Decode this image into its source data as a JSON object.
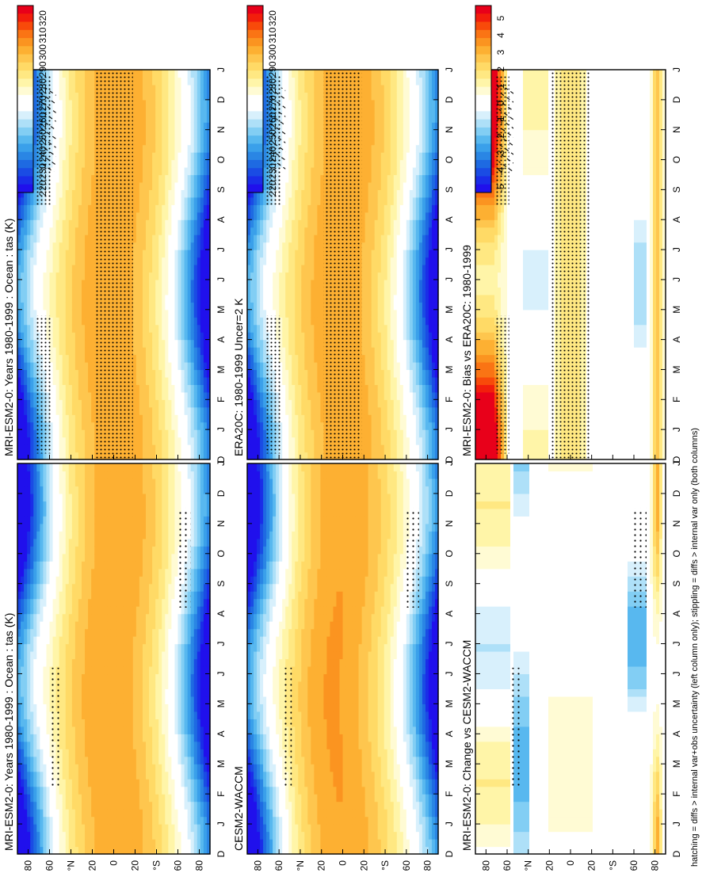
{
  "chart_data": [
    {
      "type": "heatmap",
      "title": "MRI-ESM2-0: Years 1980-1999 : Ocean : tas (K)",
      "colorbar": "abs",
      "hatching": true,
      "stipple": "heavy",
      "field": "abs"
    },
    {
      "type": "heatmap",
      "title": "MRI-ESM2-0: Years 1980-1999 : Ocean : tas (K)",
      "colorbar": "abs",
      "hatching": false,
      "stipple": "light",
      "field": "abs"
    },
    {
      "type": "heatmap",
      "title": "ERA20C: 1980-1999 Uncer=2 K",
      "colorbar": "abs",
      "hatching": true,
      "stipple": "heavy",
      "field": "abs"
    },
    {
      "type": "heatmap",
      "title": "CESM2-WACCM",
      "colorbar": "abs",
      "hatching": false,
      "stipple": "light",
      "field": "abs2"
    },
    {
      "type": "heatmap",
      "title": "MRI-ESM2-0: Bias vs ERA20C: 1980-1999",
      "colorbar": "diff",
      "hatching": true,
      "stipple": "heavy",
      "field": "bias"
    },
    {
      "type": "heatmap",
      "title": "MRI-ESM2-0: Change vs CESM2-WACCM",
      "colorbar": "diff",
      "hatching": false,
      "stipple": "light",
      "field": "change"
    }
  ],
  "axes": {
    "x_ticks": [
      "D",
      "J",
      "F",
      "M",
      "A",
      "M",
      "J",
      "J",
      "A",
      "S",
      "O",
      "N",
      "D",
      "J"
    ],
    "y_ticks": [
      "80",
      "60",
      "°N",
      "20",
      "0",
      "20",
      "°S",
      "60",
      "80"
    ],
    "lat_range": [
      -90,
      90
    ]
  },
  "colorbars": {
    "abs": {
      "labels": [
        "320",
        "310",
        "300",
        "290",
        "280",
        "270",
        "260",
        "250",
        "240",
        "230",
        "220"
      ],
      "colors": [
        "#e8001a",
        "#f21e0c",
        "#f84a0a",
        "#fa7414",
        "#fb9420",
        "#fdb032",
        "#fec64e",
        "#ffda66",
        "#ffe882",
        "#fff5a8",
        "#fffbd4",
        "#ffffff",
        "#ffffff",
        "#d8f0fc",
        "#aee0f8",
        "#82cef4",
        "#58b8ef",
        "#3aa0ea",
        "#2a86e4",
        "#1e6ae2",
        "#1a4ce4",
        "#1a2de8",
        "#2010ec"
      ]
    },
    "diff": {
      "labels": [
        "5",
        "4",
        "3",
        "2",
        "1",
        "0",
        "-1",
        "-2",
        "-3",
        "-4",
        "-5"
      ],
      "colors": [
        "#e8001a",
        "#f21e0c",
        "#f84a0a",
        "#fa7414",
        "#fb9420",
        "#fdb032",
        "#fec64e",
        "#ffda66",
        "#ffe882",
        "#fff5a8",
        "#fffbd4",
        "#ffffff",
        "#ffffff",
        "#d8f0fc",
        "#aee0f8",
        "#82cef4",
        "#58b8ef",
        "#3aa0ea",
        "#2a86e4",
        "#1e6ae2",
        "#1a4ce4",
        "#1a2de8",
        "#2010ec"
      ]
    }
  },
  "footnote": "hatching = diffs > internal var+obs uncertainty (left column only); stippling = diffs > internal var only (both columns)"
}
